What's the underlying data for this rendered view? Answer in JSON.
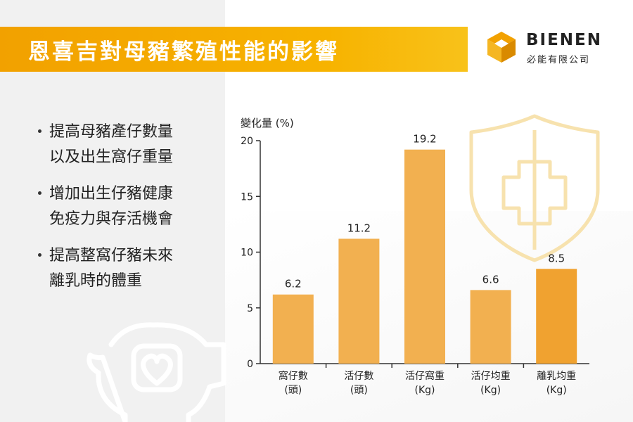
{
  "title": "恩喜吉對母豬繁殖性能的影響",
  "logo": {
    "name": "BIENEN",
    "subtitle": "必能有限公司"
  },
  "bullets": [
    {
      "lines": [
        "提高母豬產仔數量",
        "以及出生窩仔重量"
      ]
    },
    {
      "lines": [
        "增加出生仔豬健康",
        "免疫力與存活機會"
      ]
    },
    {
      "lines": [
        "提高整窩仔豬未來",
        "離乳時的體重"
      ]
    }
  ],
  "colors": {
    "accent": "#f5a800",
    "bar": "#f2b050",
    "bar_last": "#f0a230",
    "decor": "#f7e2ae"
  },
  "chart_data": {
    "type": "bar",
    "ylabel": "變化量 (%)",
    "xlabel": "",
    "ylim": [
      0,
      20
    ],
    "yticks": [
      0,
      5,
      10,
      15,
      20
    ],
    "grid": false,
    "categories": [
      [
        "窩仔數",
        "(頭)"
      ],
      [
        "活仔數",
        "(頭)"
      ],
      [
        "活仔窩重",
        "(Kg)"
      ],
      [
        "活仔均重",
        "(Kg)"
      ],
      [
        "離乳均重",
        "(Kg)"
      ]
    ],
    "values": [
      6.2,
      11.2,
      19.2,
      6.6,
      8.5
    ],
    "value_labels": [
      "6.2",
      "11.2",
      "19.2",
      "6.6",
      "8.5"
    ],
    "bar_heights_note_omitted": true,
    "series": [
      {
        "values": [
          6.2,
          11.2,
          19.2,
          6.6,
          8.5
        ]
      }
    ]
  }
}
